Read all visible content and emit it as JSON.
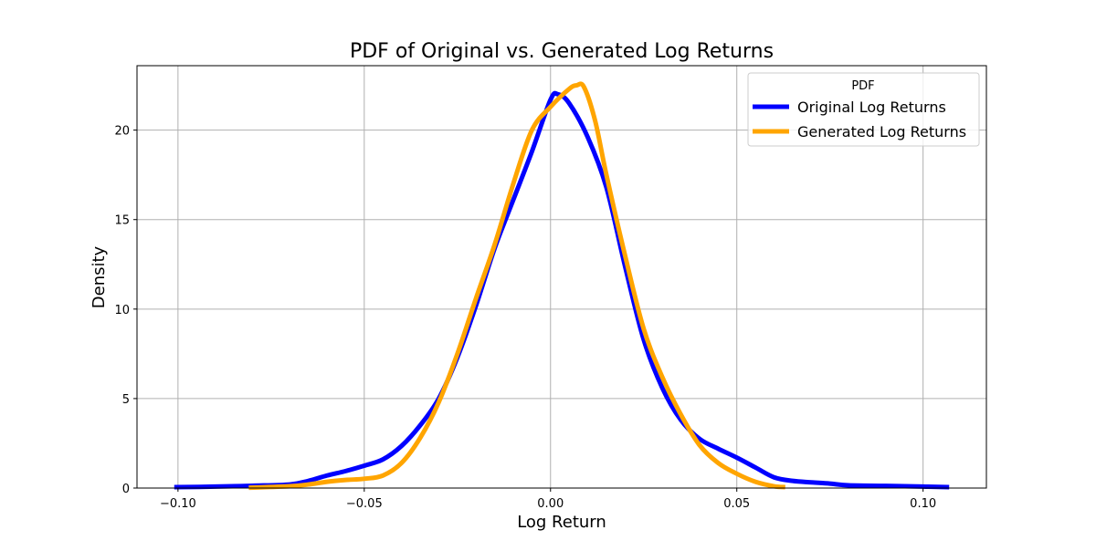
{
  "chart_data": {
    "type": "line",
    "title": "PDF of Original vs. Generated Log Returns",
    "xlabel": "Log Return",
    "ylabel": "Density",
    "xlim": [
      -0.111,
      0.117
    ],
    "ylim": [
      0,
      23.6
    ],
    "grid": true,
    "legend": {
      "title": "PDF",
      "placement": "top-right"
    },
    "x_ticks": [
      {
        "value": -0.1,
        "label": "−0.10"
      },
      {
        "value": -0.05,
        "label": "−0.05"
      },
      {
        "value": 0.0,
        "label": "0.00"
      },
      {
        "value": 0.05,
        "label": "0.05"
      },
      {
        "value": 0.1,
        "label": "0.10"
      }
    ],
    "y_ticks": [
      {
        "value": 0,
        "label": "0"
      },
      {
        "value": 5,
        "label": "5"
      },
      {
        "value": 10,
        "label": "10"
      },
      {
        "value": 15,
        "label": "15"
      },
      {
        "value": 20,
        "label": "20"
      }
    ],
    "series": [
      {
        "name": "Original Log Returns",
        "color": "#0000ff",
        "x": [
          -0.101,
          -0.09,
          -0.08,
          -0.07,
          -0.065,
          -0.06,
          -0.055,
          -0.05,
          -0.045,
          -0.04,
          -0.035,
          -0.03,
          -0.025,
          -0.02,
          -0.015,
          -0.01,
          -0.005,
          0.0,
          0.002,
          0.005,
          0.01,
          0.015,
          0.02,
          0.025,
          0.03,
          0.035,
          0.04,
          0.045,
          0.05,
          0.055,
          0.06,
          0.065,
          0.07,
          0.075,
          0.08,
          0.09,
          0.1,
          0.107
        ],
        "y": [
          0.05,
          0.08,
          0.13,
          0.2,
          0.4,
          0.7,
          0.95,
          1.25,
          1.6,
          2.35,
          3.5,
          5.0,
          7.3,
          10.2,
          13.4,
          16.1,
          18.8,
          21.7,
          22.0,
          21.5,
          19.6,
          16.8,
          12.4,
          8.3,
          5.6,
          3.8,
          2.75,
          2.2,
          1.7,
          1.15,
          0.6,
          0.4,
          0.32,
          0.25,
          0.15,
          0.12,
          0.08,
          0.05
        ]
      },
      {
        "name": "Generated Log Returns",
        "color": "#ffa500",
        "x": [
          -0.081,
          -0.07,
          -0.065,
          -0.06,
          -0.055,
          -0.05,
          -0.045,
          -0.04,
          -0.035,
          -0.03,
          -0.025,
          -0.02,
          -0.015,
          -0.01,
          -0.005,
          0.0,
          0.005,
          0.007,
          0.009,
          0.012,
          0.015,
          0.02,
          0.025,
          0.03,
          0.035,
          0.04,
          0.045,
          0.05,
          0.055,
          0.06,
          0.063
        ],
        "y": [
          0.02,
          0.1,
          0.2,
          0.35,
          0.45,
          0.52,
          0.7,
          1.4,
          2.8,
          4.8,
          7.5,
          10.6,
          13.6,
          17.0,
          20.0,
          21.3,
          22.3,
          22.5,
          22.4,
          20.5,
          17.5,
          13.0,
          8.9,
          6.2,
          4.1,
          2.4,
          1.4,
          0.8,
          0.35,
          0.1,
          0.05
        ]
      }
    ]
  }
}
